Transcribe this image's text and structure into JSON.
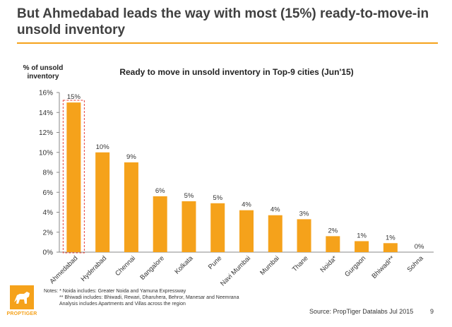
{
  "page": {
    "headline": "But Ahmedabad leads the way with most (15%) ready-to-move-in unsold inventory",
    "notes": [
      "Notes: * Noida includes: Greater Noida and Yamuna Expressway",
      "** Bhiwadi includes: Bhiwadi, Rewari, Dharuhera, Behror, Manesar and Neemrana",
      "Analysis includes Apartments and Villas across the region"
    ],
    "source": "Source: PropTiger Datalabs Jul 2015",
    "page_number": "9",
    "logo_text": "PROPTIGER"
  },
  "colors": {
    "bar": "#f5a21b",
    "accent_rule": "#f5a21b",
    "highlight_border": "#e8433a"
  },
  "chart_data": {
    "type": "bar",
    "title": "Ready to move in unsold inventory in Top-9 cities (Jun'15)",
    "ylabel": "% of unsold inventory",
    "xlabel": "",
    "categories": [
      "Ahmedabad",
      "Hyderabad",
      "Chennai",
      "Bangalore",
      "Kolkata",
      "Pune",
      "Navi Mumbai",
      "Mumbai",
      "Thane",
      "Noida*",
      "Gurgaon",
      "Bhiwadi**",
      "Sohna"
    ],
    "values": [
      15.0,
      10.0,
      9.0,
      5.6,
      5.1,
      4.9,
      4.2,
      3.7,
      3.3,
      1.6,
      1.1,
      0.9,
      0.0
    ],
    "value_labels": [
      "15%",
      "10%",
      "9%",
      "6%",
      "5%",
      "5%",
      "4%",
      "4%",
      "3%",
      "2%",
      "1%",
      "1%",
      "0%"
    ],
    "ylim": [
      0,
      16
    ],
    "yticks": [
      0,
      2,
      4,
      6,
      8,
      10,
      12,
      14,
      16
    ],
    "ytick_labels": [
      "0%",
      "2%",
      "4%",
      "6%",
      "8%",
      "10%",
      "12%",
      "14%",
      "16%"
    ],
    "grid": false,
    "legend": "none",
    "highlighted_category": "Ahmedabad"
  }
}
